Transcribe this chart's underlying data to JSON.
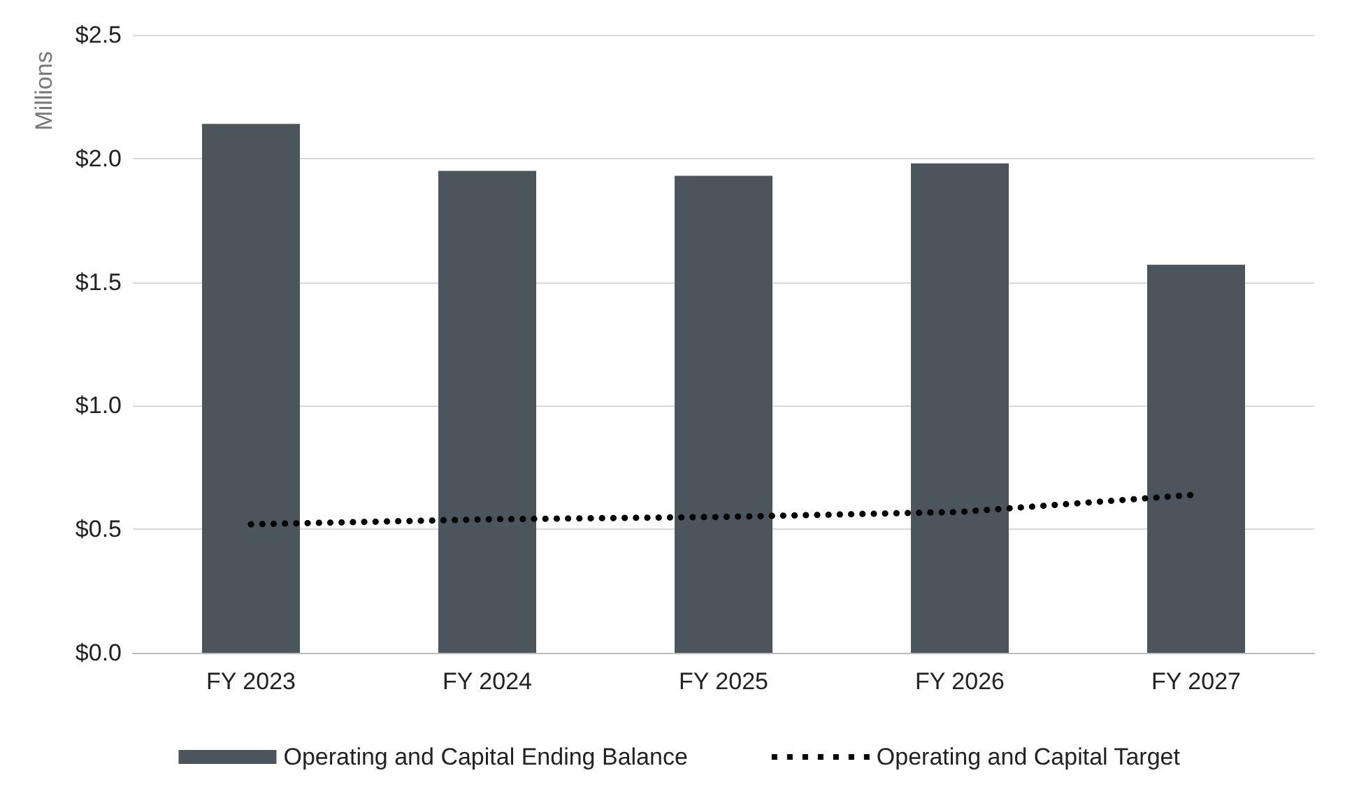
{
  "chart_data": {
    "type": "bar",
    "ylabel": "Millions",
    "categories": [
      "FY 2023",
      "FY 2024",
      "FY 2025",
      "FY 2026",
      "FY 2027"
    ],
    "series": [
      {
        "name": "Operating and Capital Ending Balance",
        "color": "#4b555b",
        "values": [
          2.14,
          1.95,
          1.93,
          1.98,
          1.57
        ]
      },
      {
        "name": "Operating and Capital Target",
        "type": "line",
        "color": "#000000",
        "line_style": "dotted",
        "marker": "none",
        "values": [
          0.52,
          0.54,
          0.55,
          0.57,
          0.64
        ]
      }
    ],
    "ylim": [
      0,
      2.5
    ],
    "yticks": [
      {
        "value": 0,
        "label": "$0.0"
      },
      {
        "value": 0.5,
        "label": "$0.5"
      },
      {
        "value": 1,
        "label": "$1.0"
      },
      {
        "value": 1.5,
        "label": "$1.5"
      },
      {
        "value": 2,
        "label": "$2.0"
      },
      {
        "value": 2.5,
        "label": "$2.5"
      }
    ],
    "grid": "y",
    "legend": "bottom"
  }
}
